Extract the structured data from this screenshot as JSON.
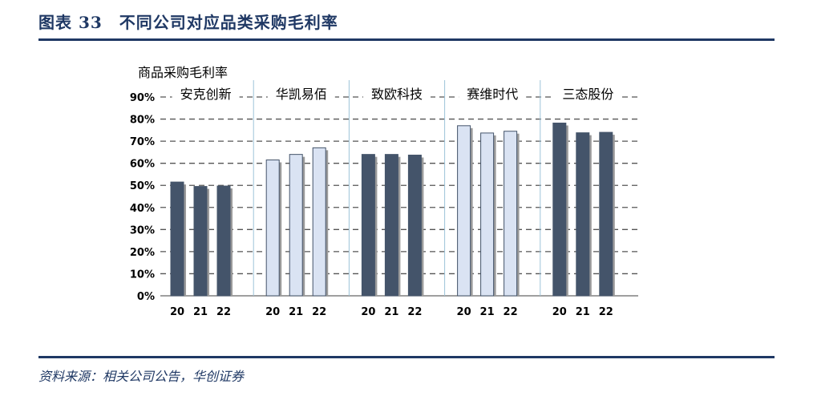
{
  "header": {
    "title": "图表 33　不同公司对应品类采购毛利率"
  },
  "footer": {
    "source": "资料来源：相关公司公告，华创证券"
  },
  "colors": {
    "dark_bar": "#44546a",
    "light_bar": "#dae3f3",
    "header": "#1f3864"
  },
  "chart_data": {
    "type": "bar",
    "ylabel": "商品采购毛利率",
    "ylim": [
      0,
      0.9
    ],
    "yticks": [
      "0%",
      "10%",
      "20%",
      "30%",
      "40%",
      "50%",
      "60%",
      "70%",
      "80%",
      "90%"
    ],
    "grid": true,
    "groups": [
      {
        "name": "安克创新",
        "style": "dark",
        "categories": [
          "20",
          "21",
          "22"
        ],
        "values": [
          0.515,
          0.495,
          0.497
        ]
      },
      {
        "name": "华凯易佰",
        "style": "light",
        "categories": [
          "20",
          "21",
          "22"
        ],
        "values": [
          0.615,
          0.64,
          0.67
        ]
      },
      {
        "name": "致欧科技",
        "style": "dark",
        "categories": [
          "20",
          "21",
          "22"
        ],
        "values": [
          0.64,
          0.64,
          0.637
        ]
      },
      {
        "name": "赛维时代",
        "style": "light",
        "categories": [
          "20",
          "21",
          "22"
        ],
        "values": [
          0.77,
          0.737,
          0.745
        ]
      },
      {
        "name": "三态股份",
        "style": "dark",
        "categories": [
          "20",
          "21",
          "22"
        ],
        "values": [
          0.782,
          0.738,
          0.74
        ]
      }
    ]
  }
}
